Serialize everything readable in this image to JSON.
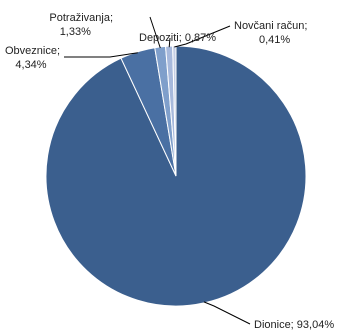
{
  "chart_data": {
    "type": "pie",
    "title": "",
    "slices": [
      {
        "name": "Dionice",
        "value": 93.04,
        "label_lines": [
          "Dionice; 93,04%"
        ],
        "color": "#3b5f8e"
      },
      {
        "name": "Obveznice",
        "value": 4.34,
        "label_lines": [
          "Obveznice;",
          "4,34%"
        ],
        "color": "#4a70a3"
      },
      {
        "name": "Potraživanja",
        "value": 1.33,
        "label_lines": [
          "Potraživanja;",
          "1,33%"
        ],
        "color": "#7f9fcb"
      },
      {
        "name": "Depoziti",
        "value": 0.87,
        "label_lines": [
          "Depoziti; 0,87%"
        ],
        "color": "#a7b9dc"
      },
      {
        "name": "Novčani račun",
        "value": 0.41,
        "label_lines": [
          "Novčani račun;",
          "0,41%"
        ],
        "color": "#c5cfe6"
      }
    ],
    "start_angle_deg": 0,
    "direction": "clockwise",
    "legend": "none",
    "slice_border_color": "#ffffff"
  }
}
